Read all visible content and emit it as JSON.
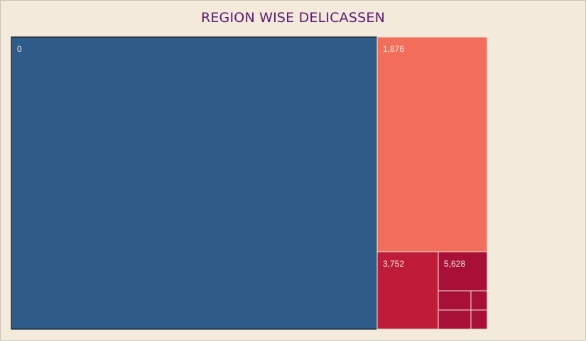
{
  "chart_data": {
    "type": "treemap",
    "title": "REGION WISE DELICASSEN",
    "tiles": [
      {
        "label": "0",
        "color": "#2e5b87"
      },
      {
        "label": "1,876",
        "color": "#f36e5a"
      },
      {
        "label": "3,752",
        "color": "#be1c39"
      },
      {
        "label": "5,628",
        "color": "#a81038"
      },
      {
        "label": "",
        "color": "#a81038"
      },
      {
        "label": "",
        "color": "#a81038"
      },
      {
        "label": "",
        "color": "#a81038"
      },
      {
        "label": "",
        "color": "#a81038"
      }
    ]
  }
}
